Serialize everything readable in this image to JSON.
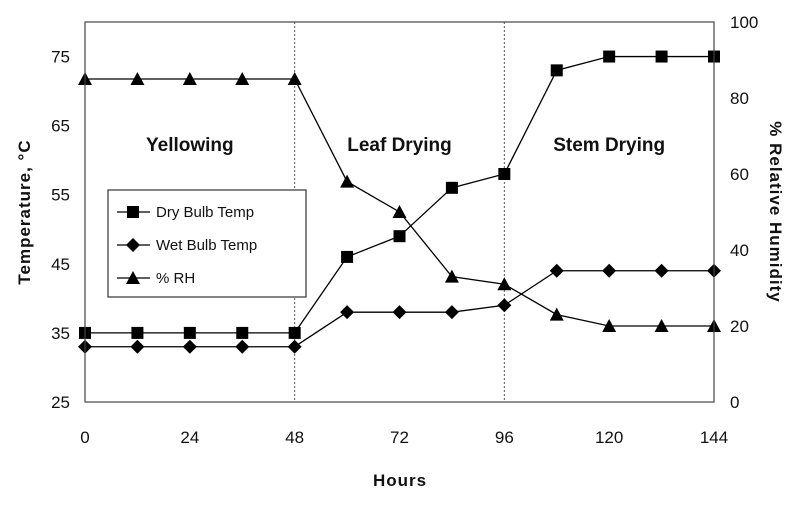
{
  "chart_data": {
    "type": "line",
    "xlabel": "Hours",
    "ylabel_left": "Temperature, °C",
    "ylabel_right": "% Relative Humidity",
    "x": [
      0,
      12,
      24,
      36,
      48,
      60,
      72,
      84,
      96,
      108,
      120,
      132,
      144
    ],
    "xlim": [
      0,
      144
    ],
    "xticks": [
      0,
      24,
      48,
      72,
      96,
      120,
      144
    ],
    "ylim_left": [
      25,
      80
    ],
    "yticks_left": [
      25,
      35,
      45,
      55,
      65,
      75
    ],
    "ylim_right": [
      0,
      100
    ],
    "yticks_right": [
      0,
      20,
      40,
      60,
      80,
      100
    ],
    "grid": false,
    "legend_placement": "center-left",
    "phases": [
      {
        "label": "Yellowing",
        "start": 0,
        "end": 48
      },
      {
        "label": "Leaf Drying",
        "start": 48,
        "end": 96
      },
      {
        "label": "Stem Drying",
        "start": 96,
        "end": 144
      }
    ],
    "series": [
      {
        "name": "Dry Bulb Temp",
        "axis": "left",
        "marker": "square",
        "color": "#000000",
        "values": [
          35,
          35,
          35,
          35,
          35,
          46,
          49,
          56,
          58,
          73,
          75,
          75,
          75
        ]
      },
      {
        "name": "Wet Bulb Temp",
        "axis": "left",
        "marker": "diamond",
        "color": "#000000",
        "values": [
          33,
          33,
          33,
          33,
          33,
          38,
          38,
          38,
          39,
          44,
          44,
          44,
          44
        ]
      },
      {
        "name": "% RH",
        "axis": "right",
        "marker": "triangle",
        "color": "#000000",
        "values": [
          85,
          85,
          85,
          85,
          85,
          58,
          50,
          33,
          31,
          23,
          20,
          20,
          20
        ]
      }
    ]
  }
}
